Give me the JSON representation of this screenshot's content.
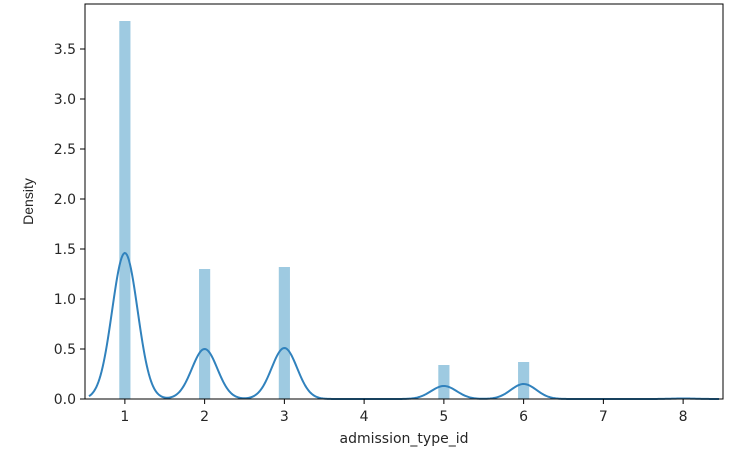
{
  "chart_data": {
    "type": "bar",
    "xlabel": "admission_type_id",
    "ylabel": "Density",
    "xlim": [
      0.5,
      8.5
    ],
    "ylim": [
      0,
      3.95
    ],
    "xticks": [
      {
        "value": 1,
        "label": "1"
      },
      {
        "value": 2,
        "label": "2"
      },
      {
        "value": 3,
        "label": "3"
      },
      {
        "value": 4,
        "label": "4"
      },
      {
        "value": 5,
        "label": "5"
      },
      {
        "value": 6,
        "label": "6"
      },
      {
        "value": 7,
        "label": "7"
      },
      {
        "value": 8,
        "label": "8"
      }
    ],
    "yticks": [
      {
        "value": 0.0,
        "label": "0.0"
      },
      {
        "value": 0.5,
        "label": "0.5"
      },
      {
        "value": 1.0,
        "label": "1.0"
      },
      {
        "value": 1.5,
        "label": "1.5"
      },
      {
        "value": 2.0,
        "label": "2.0"
      },
      {
        "value": 2.5,
        "label": "2.5"
      },
      {
        "value": 3.0,
        "label": "3.0"
      },
      {
        "value": 3.5,
        "label": "3.5"
      }
    ],
    "histogram": {
      "bin_width": 0.14,
      "color": "#9ecae1",
      "bars": [
        {
          "x": 1,
          "value": 3.78
        },
        {
          "x": 2,
          "value": 1.3
        },
        {
          "x": 3,
          "value": 1.32
        },
        {
          "x": 5,
          "value": 0.34
        },
        {
          "x": 6,
          "value": 0.37
        },
        {
          "x": 8,
          "value": 0.01
        }
      ]
    },
    "kde": {
      "color": "#3182bd",
      "x_range": [
        0.55,
        8.45
      ],
      "peaks": [
        {
          "x": 1,
          "height": 1.46,
          "sigma": 0.16
        },
        {
          "x": 2,
          "height": 0.5,
          "sigma": 0.16
        },
        {
          "x": 3,
          "height": 0.51,
          "sigma": 0.16
        },
        {
          "x": 5,
          "height": 0.13,
          "sigma": 0.16
        },
        {
          "x": 6,
          "height": 0.15,
          "sigma": 0.16
        },
        {
          "x": 8,
          "height": 0.005,
          "sigma": 0.16
        }
      ]
    },
    "grid": false,
    "legend": "none"
  }
}
